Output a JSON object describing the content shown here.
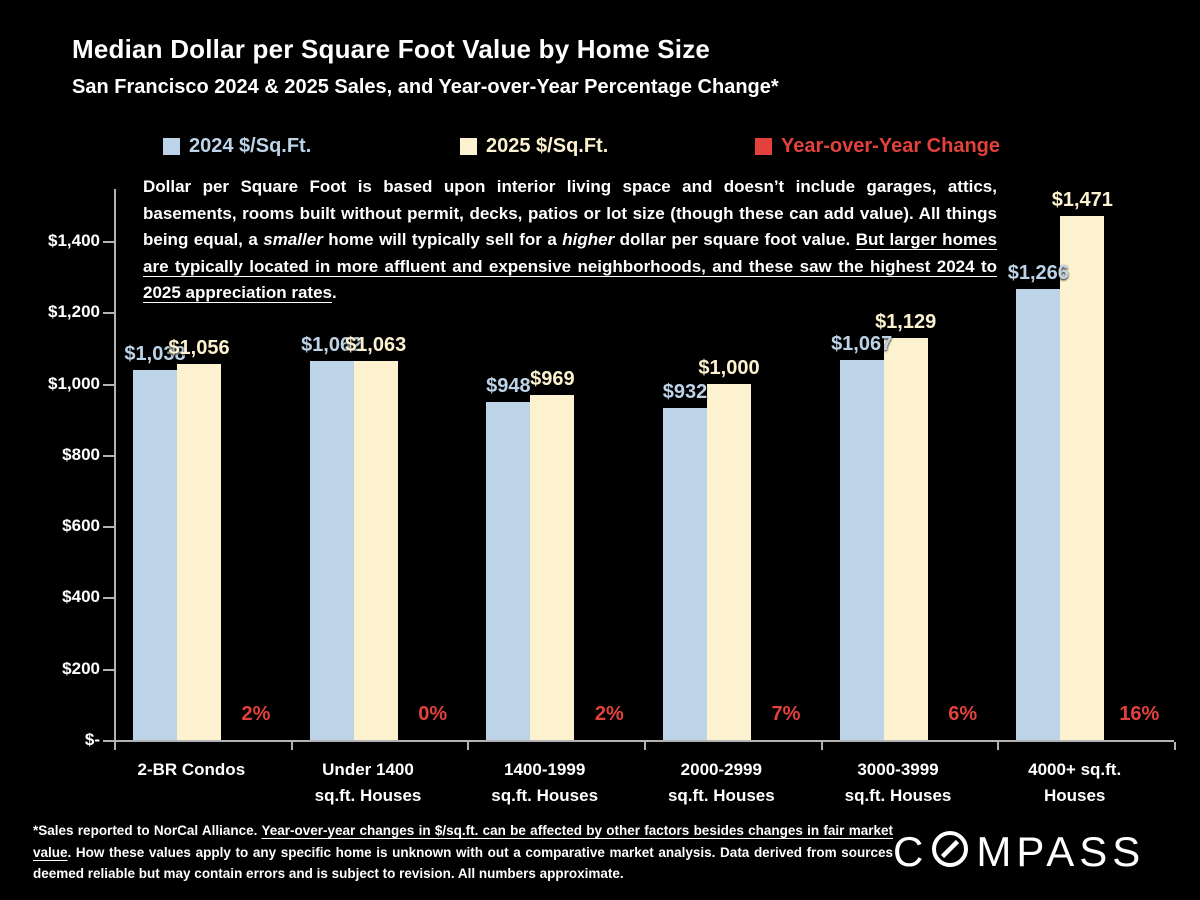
{
  "title": "Median Dollar per Square Foot Value by Home Size",
  "subtitle": "San Francisco 2024 & 2025 Sales, and Year-over-Year Percentage Change*",
  "colors": {
    "series_2024": "#bdd3e8",
    "series_2025": "#fcf2cf",
    "yoy_red": "#e2413c",
    "axis_gray": "#b3b3b3",
    "background": "#000000",
    "text_white": "#ffffff"
  },
  "legend": [
    {
      "label": "2024 $/Sq.Ft.",
      "color": "#bdd3e8",
      "text_color": "#bdd3e8"
    },
    {
      "label": "2025 $/Sq.Ft.",
      "color": "#fcf2cf",
      "text_color": "#fcf2cf"
    },
    {
      "label": "Year-over-Year Change",
      "color": "#e2413c",
      "text_color": "#e2413c"
    }
  ],
  "annotation_segments": [
    {
      "text": "Dollar per Square Foot is based upon interior living space and doesn’t include garages, attics, basements, rooms built without permit, decks, patios or lot size (though these can add value). All things being equal, a ",
      "style": "plain"
    },
    {
      "text": "smaller",
      "style": "italic"
    },
    {
      "text": " home will typically sell for a ",
      "style": "plain"
    },
    {
      "text": "higher",
      "style": "italic"
    },
    {
      "text": " dollar per square foot value. ",
      "style": "plain"
    },
    {
      "text": "But larger homes are typically located in more affluent and expensive neighborhoods, and these saw the highest 2024 to 2025 appreciation rates",
      "style": "underline"
    },
    {
      "text": ".",
      "style": "plain"
    }
  ],
  "chart_data": {
    "type": "bar",
    "title": "Median Dollar per Square Foot Value by Home Size",
    "categories": [
      [
        "2-BR Condos"
      ],
      [
        "Under 1400",
        "sq.ft. Houses"
      ],
      [
        "1400-1999",
        "sq.ft. Houses"
      ],
      [
        "2000-2999",
        "sq.ft. Houses"
      ],
      [
        "3000-3999",
        "sq.ft. Houses"
      ],
      [
        "4000+ sq.ft.",
        "Houses"
      ]
    ],
    "series": [
      {
        "name": "2024 $/Sq.Ft.",
        "color": "#bdd3e8",
        "values": [
          1038,
          1062,
          948,
          932,
          1067,
          1266
        ],
        "labels": [
          "$1,038",
          "$1,062",
          "$948",
          "$932",
          "$1,067",
          "$1,266"
        ]
      },
      {
        "name": "2025 $/Sq.Ft.",
        "color": "#fcf2cf",
        "values": [
          1056,
          1063,
          969,
          1000,
          1129,
          1471
        ],
        "labels": [
          "$1,056",
          "$1,063",
          "$969",
          "$1,000",
          "$1,129",
          "$1,471"
        ]
      },
      {
        "name": "Year-over-Year Change",
        "color": "#e2413c",
        "values": [
          2,
          0,
          2,
          7,
          6,
          16
        ],
        "labels": [
          "2%",
          "0%",
          "2%",
          "7%",
          "6%",
          "16%"
        ]
      }
    ],
    "ylabel": "",
    "xlabel": "",
    "ylim": [
      0,
      1400
    ],
    "y_ticks": [
      "$1,400",
      "$1,200",
      "$1,000",
      "$800",
      "$600",
      "$400",
      "$200",
      "$-"
    ],
    "y_tick_values": [
      1400,
      1200,
      1000,
      800,
      600,
      400,
      200,
      0
    ],
    "grid": false,
    "legend_position": "top"
  },
  "footnote_segments": [
    {
      "text": "*Sales reported to NorCal Alliance. ",
      "style": "plain"
    },
    {
      "text": "Year-over-year changes in $/sq.ft. can be affected by other factors besides changes in fair market value",
      "style": "underline"
    },
    {
      "text": ". How these values apply to any specific home is unknown with out a comparative market analysis. Data derived from sources deemed reliable but may contain errors and is subject to revision. All numbers  approximate.",
      "style": "plain"
    }
  ],
  "logo": {
    "brand": "COMPASS",
    "letters_before_o": "C",
    "letters_after_o": "MPASS"
  }
}
